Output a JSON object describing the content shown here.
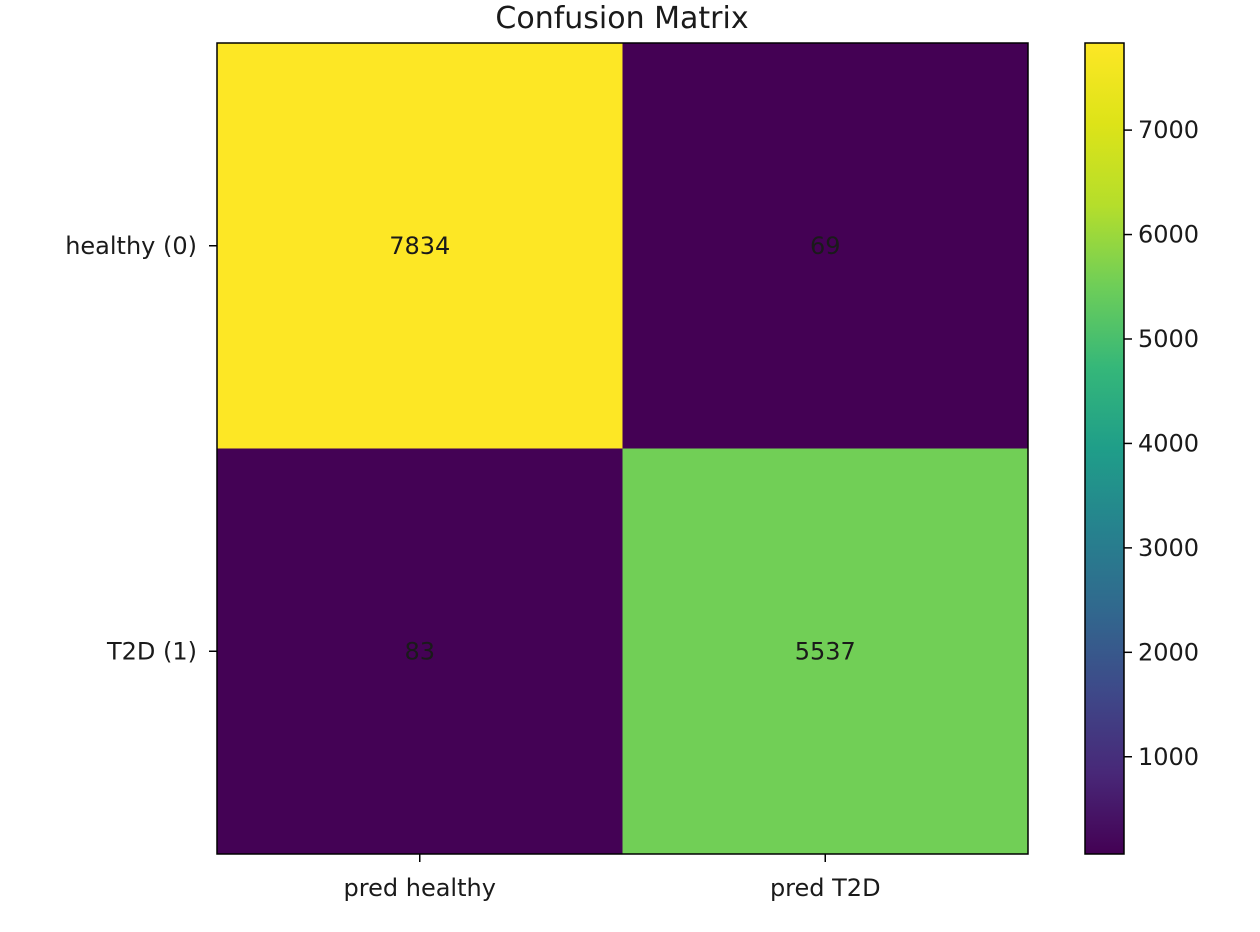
{
  "chart_data": {
    "type": "heatmap",
    "title": "Confusion Matrix",
    "xlabel": "",
    "ylabel": "",
    "rows": [
      "healthy (0)",
      "T2D (1)"
    ],
    "columns": [
      "pred healthy",
      "pred T2D"
    ],
    "values": [
      [
        7834,
        69
      ],
      [
        83,
        5537
      ]
    ],
    "colormap": "viridis",
    "colorbar": {
      "range": [
        69,
        7834
      ],
      "ticks": [
        1000,
        2000,
        3000,
        4000,
        5000,
        6000,
        7000
      ],
      "tick_labels": [
        "1000",
        "2000",
        "3000",
        "4000",
        "5000",
        "6000",
        "7000"
      ]
    },
    "grid": false
  }
}
